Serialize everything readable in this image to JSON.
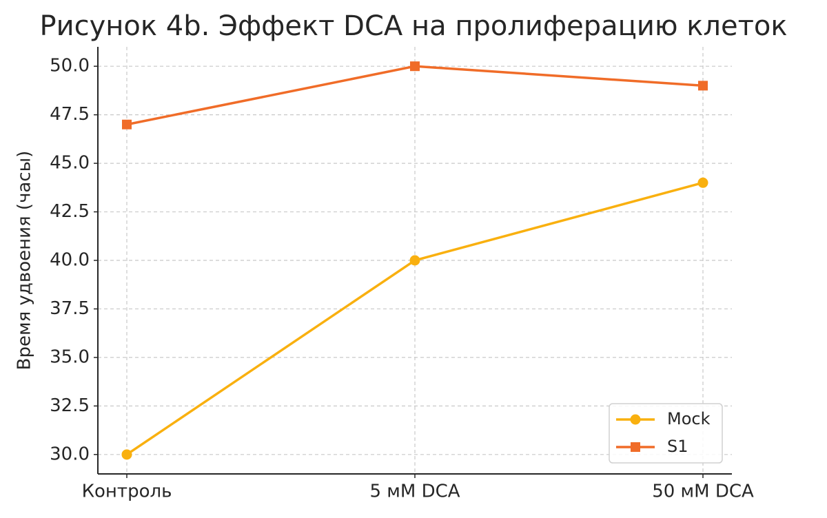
{
  "chart_data": {
    "type": "line",
    "title": "Рисунок 4b. Эффект DCA на пролиферацию клеток",
    "y_label": "Время удвоения (часы)",
    "categories": [
      "Контроль",
      "5 мМ DCA",
      "50 мМ DCA"
    ],
    "series": [
      {
        "name": "Mock",
        "color": "#f9b00f",
        "marker": "circle",
        "values": [
          30,
          40,
          44
        ]
      },
      {
        "name": "S1",
        "color": "#f06c28",
        "marker": "square",
        "values": [
          47,
          50,
          49
        ]
      }
    ],
    "ylim": [
      29,
      51
    ],
    "yticks": [
      {
        "value": 30,
        "label": "30.0"
      },
      32.5,
      {
        "value": 35,
        "label": "35.0"
      },
      37.5,
      {
        "value": 40,
        "label": "40.0"
      },
      42.5,
      {
        "value": 45,
        "label": "45.0"
      },
      47.5,
      {
        "value": 50,
        "label": "50.0"
      }
    ],
    "grid": true,
    "legend": "lower right"
  }
}
